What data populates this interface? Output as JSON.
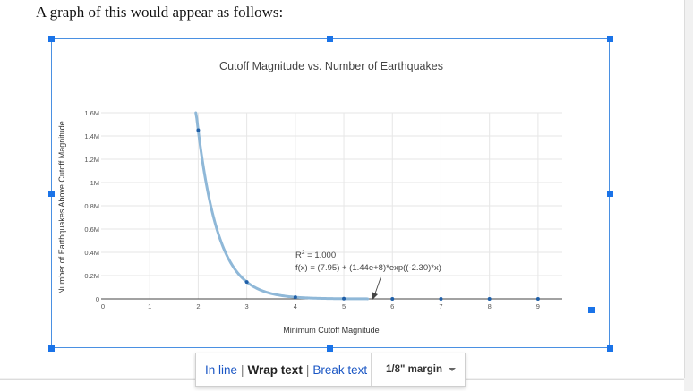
{
  "document": {
    "intro_text": "A graph of this would appear as follows:"
  },
  "chart_data": {
    "type": "scatter",
    "title": "Cutoff Magnitude vs. Number of Earthquakes",
    "xlabel": "Minimum Cutoff Magnitude",
    "ylabel": "Number of Earthquakes Above Cutoff Magnitude",
    "xlim": [
      0,
      9.5
    ],
    "ylim": [
      0,
      1600000
    ],
    "x_ticks": [
      "0",
      "1",
      "2",
      "3",
      "4",
      "5",
      "6",
      "7",
      "8",
      "9"
    ],
    "y_ticks": [
      "0",
      "0.2M",
      "0.4M",
      "0.6M",
      "0.8M",
      "1M",
      "1.2M",
      "1.4M",
      "1.6M"
    ],
    "grid": true,
    "points": {
      "x": [
        2,
        3,
        4,
        5,
        6,
        7,
        8,
        9
      ],
      "y": [
        1450000,
        145000,
        14500,
        1450,
        145,
        15,
        2,
        1
      ]
    },
    "fit": {
      "a": 7.95,
      "b": 144000000,
      "c": -2.3,
      "x_start": 1.95,
      "x_end": 5.5
    },
    "annotation": {
      "r2_label": "R",
      "r2_sup": "2",
      "r2_value": " = 1.000",
      "equation": "f(x) = (7.95) + (1.44e+8)*exp((-2.30)*x)"
    },
    "colors": {
      "points": "#1f5fa8",
      "fit_line": "#8fb8d8",
      "grid": "#e6e6e6"
    }
  },
  "toolbar": {
    "in_line": "In line",
    "wrap_text": "Wrap text",
    "break_text": "Break text",
    "separator": "|",
    "margin_value": "1/8\" margin"
  }
}
